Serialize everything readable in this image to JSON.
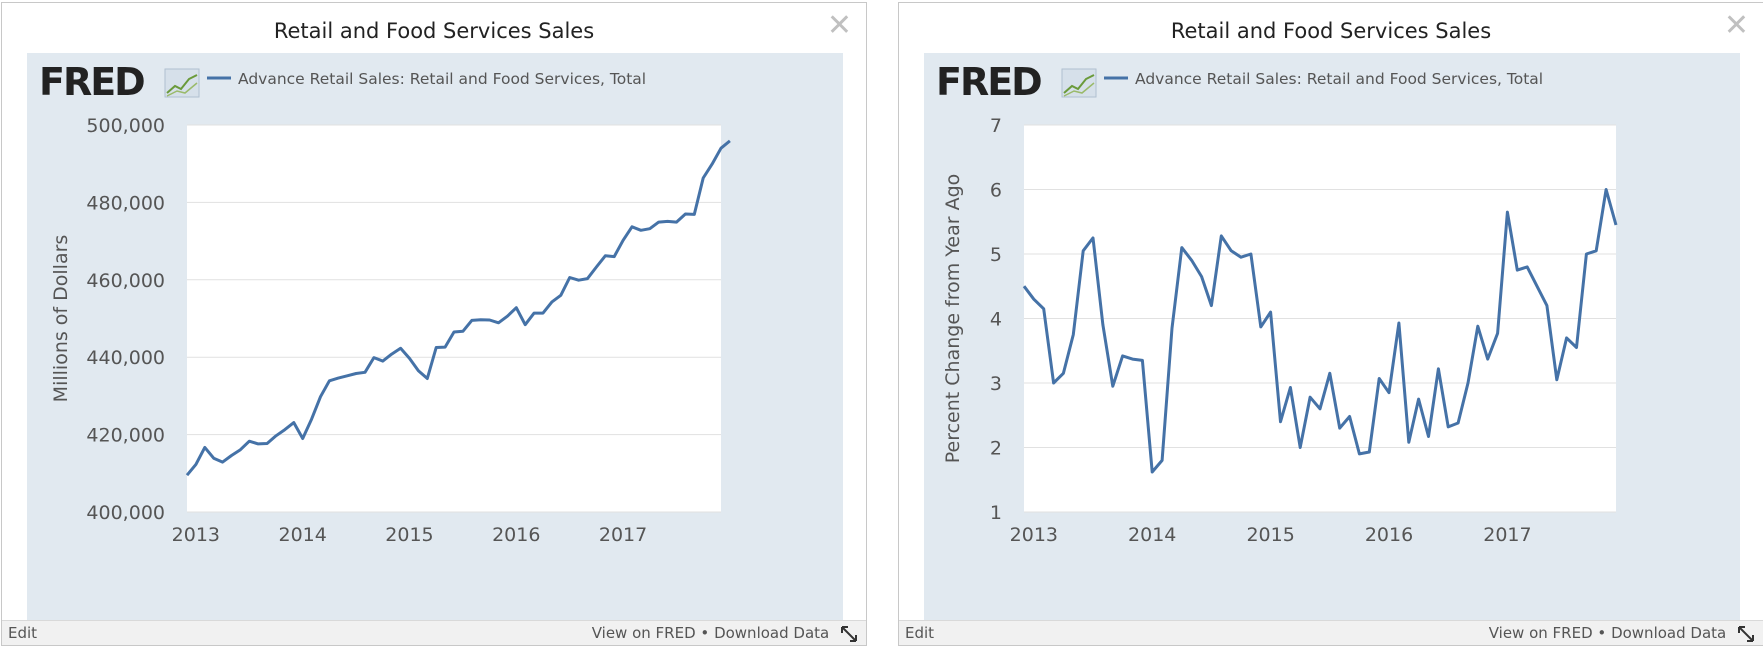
{
  "panels": [
    {
      "title": "Retail and Food Services Sales",
      "brand": "FRED",
      "footer": {
        "edit": "Edit",
        "view": "View on FRED",
        "sep": "•",
        "download": "Download Data"
      },
      "chart_data": {
        "type": "line",
        "title": "Retail and Food Services Sales",
        "ylabel": "Millions of Dollars",
        "xlabel": "",
        "xlim": [
          2012.917,
          2017.917
        ],
        "ylim": [
          400000,
          500000
        ],
        "yticks": [
          400000,
          420000,
          440000,
          460000,
          480000,
          500000
        ],
        "ytick_labels": [
          "400,000",
          "420,000",
          "440,000",
          "460,000",
          "480,000",
          "500,000"
        ],
        "xticks": [
          2013,
          2014,
          2015,
          2016,
          2017
        ],
        "xtick_labels": [
          "2013",
          "2014",
          "2015",
          "2016",
          "2017"
        ],
        "grid": true,
        "legend": "top-left",
        "series_color": "#4572a7",
        "series": [
          {
            "name": "Advance Retail Sales: Retail and Food Services, Total",
            "start": "2012-12",
            "frequency": "monthly",
            "values": [
              409500,
              412300,
              416700,
              413900,
              412900,
              414600,
              416100,
              418300,
              417600,
              417700,
              419700,
              421300,
              423100,
              419000,
              424000,
              429800,
              433900,
              434600,
              435200,
              435800,
              436100,
              439900,
              439000,
              440800,
              442300,
              439700,
              436500,
              434500,
              442500,
              442600,
              446500,
              446700,
              449500,
              449700,
              449600,
              448900,
              450600,
              452800,
              448400,
              451400,
              451400,
              454300,
              456000,
              460600,
              459900,
              460300,
              463300,
              466200,
              466000,
              470200,
              473700,
              472800,
              473200,
              474900,
              475100,
              474900,
              477000,
              476900,
              486300,
              489900,
              494000,
              495900
            ]
          }
        ]
      }
    },
    {
      "title": "Retail and Food Services Sales",
      "brand": "FRED",
      "footer": {
        "edit": "Edit",
        "view": "View on FRED",
        "sep": "•",
        "download": "Download Data"
      },
      "chart_data": {
        "type": "line",
        "title": "Retail and Food Services Sales",
        "ylabel": "Percent Change from Year Ago",
        "xlabel": "",
        "xlim": [
          2012.917,
          2017.917
        ],
        "ylim": [
          1,
          7
        ],
        "yticks": [
          1,
          2,
          3,
          4,
          5,
          6,
          7
        ],
        "ytick_labels": [
          "1",
          "2",
          "3",
          "4",
          "5",
          "6",
          "7"
        ],
        "xticks": [
          2013,
          2014,
          2015,
          2016,
          2017
        ],
        "xtick_labels": [
          "2013",
          "2014",
          "2015",
          "2016",
          "2017"
        ],
        "grid": true,
        "legend": "top-left",
        "series_color": "#4572a7",
        "series": [
          {
            "name": "Advance Retail Sales: Retail and Food Services, Total",
            "start": "2012-12",
            "frequency": "monthly",
            "values": [
              4.5,
              4.3,
              4.15,
              3.0,
              3.15,
              3.75,
              5.05,
              5.25,
              3.9,
              2.95,
              3.42,
              3.37,
              3.35,
              1.62,
              1.8,
              3.85,
              5.1,
              4.9,
              4.65,
              4.2,
              5.28,
              5.05,
              4.95,
              5.0,
              3.87,
              4.1,
              2.4,
              2.93,
              2.0,
              2.78,
              2.6,
              3.15,
              2.3,
              2.48,
              1.9,
              1.93,
              3.07,
              2.85,
              3.93,
              2.08,
              2.75,
              2.17,
              3.22,
              2.32,
              2.38,
              3.0,
              3.88,
              3.37,
              3.77,
              5.65,
              4.75,
              4.8,
              4.5,
              4.2,
              3.05,
              3.7,
              3.55,
              5.0,
              5.05,
              6.0,
              5.45
            ]
          }
        ]
      }
    }
  ]
}
